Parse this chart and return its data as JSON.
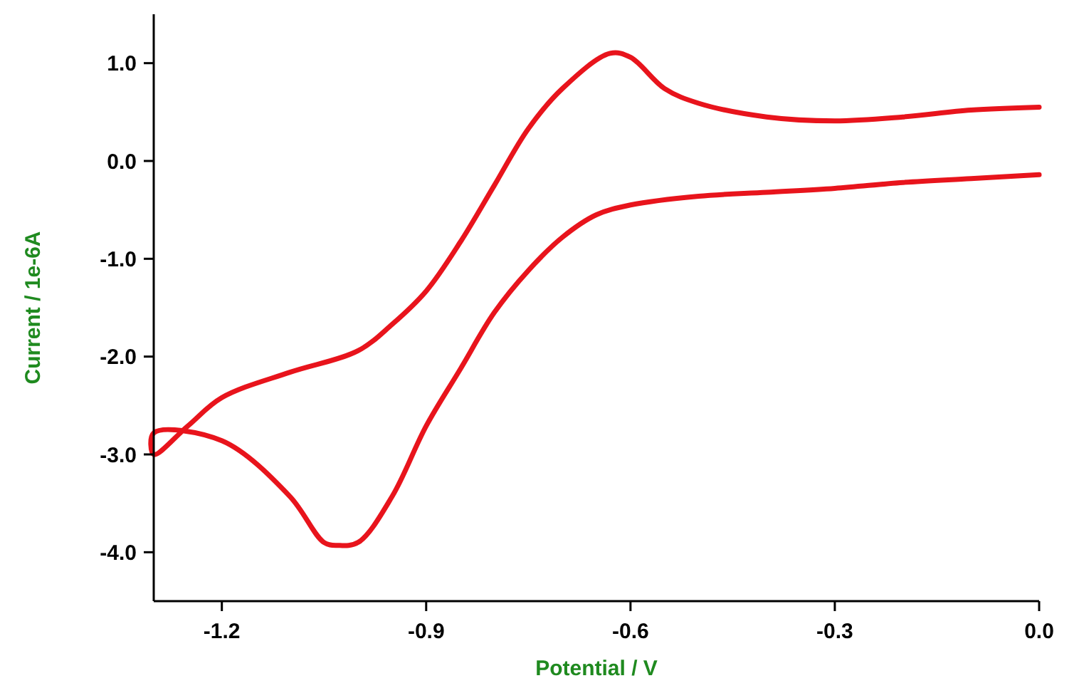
{
  "chart_data": {
    "type": "line",
    "xlabel": "Potential / V",
    "ylabel": "Current / 1e-6A",
    "xlim": [
      -1.3,
      0.0
    ],
    "ylim": [
      -4.5,
      1.5
    ],
    "xticks": [
      {
        "value": -1.2,
        "label": "-1.2"
      },
      {
        "value": -0.9,
        "label": "-0.9"
      },
      {
        "value": -0.6,
        "label": "-0.6"
      },
      {
        "value": -0.3,
        "label": "-0.3"
      },
      {
        "value": 0,
        "label": "0.0"
      }
    ],
    "yticks": [
      {
        "value": -4,
        "label": "-4.0"
      },
      {
        "value": -3,
        "label": "-3.0"
      },
      {
        "value": -2,
        "label": "-2.0"
      },
      {
        "value": -1,
        "label": "-1.0"
      },
      {
        "value": 0,
        "label": "0.0"
      },
      {
        "value": 1,
        "label": "1.0"
      }
    ],
    "grid": false,
    "marker": "none",
    "line_style": "solid",
    "series": [
      {
        "color": "#e8141c",
        "x": [
          0,
          -0.1,
          -0.2,
          -0.3,
          -0.4,
          -0.5,
          -0.55,
          -0.6,
          -0.63,
          -0.7,
          -0.75,
          -0.8,
          -0.85,
          -0.9,
          -0.95,
          -1.0,
          -1.1,
          -1.2,
          -1.25,
          -1.3,
          -1.3,
          -1.2,
          -1.1,
          -1.05,
          -1.03,
          -1.0,
          -0.95,
          -0.9,
          -0.85,
          -0.8,
          -0.75,
          -0.7,
          -0.65,
          -0.6,
          -0.5,
          -0.4,
          -0.3,
          -0.2,
          -0.1,
          0
        ],
        "values": [
          0.55,
          0.52,
          0.45,
          0.41,
          0.45,
          0.59,
          0.74,
          1.06,
          1.1,
          0.74,
          0.33,
          -0.25,
          -0.83,
          -1.33,
          -1.67,
          -1.94,
          -2.16,
          -2.42,
          -2.71,
          -3.0,
          -2.78,
          -2.86,
          -3.43,
          -3.9,
          -3.93,
          -3.9,
          -3.43,
          -2.71,
          -2.13,
          -1.55,
          -1.12,
          -0.78,
          -0.55,
          -0.45,
          -0.36,
          -0.32,
          -0.28,
          -0.22,
          -0.18,
          -0.14
        ]
      }
    ]
  }
}
